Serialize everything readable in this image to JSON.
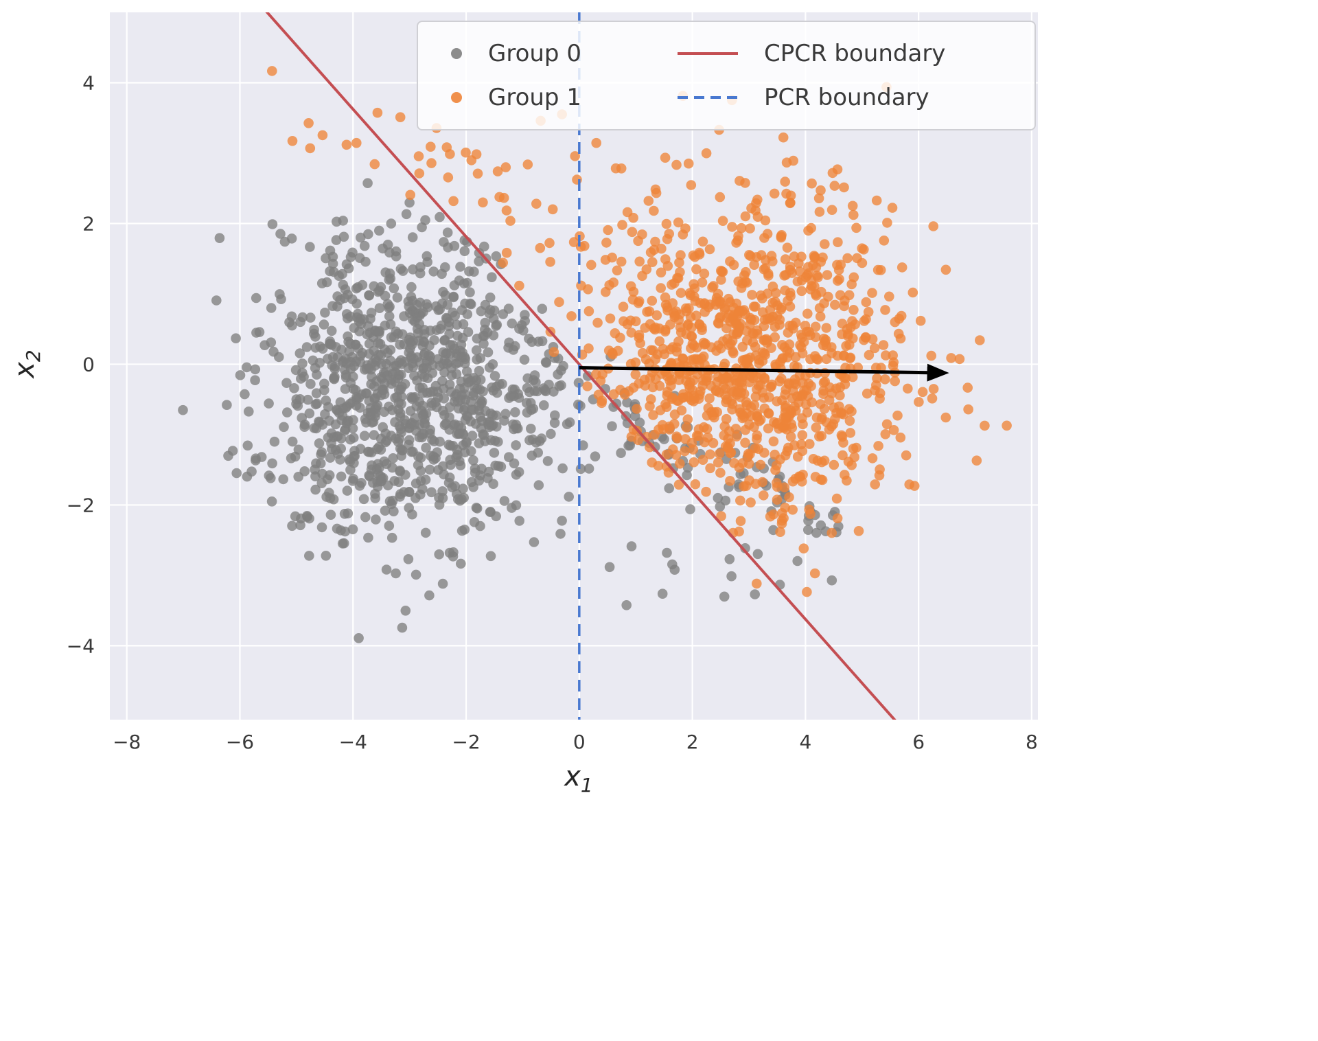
{
  "chart_data": {
    "type": "scatter",
    "xlabel_base": "x",
    "xlabel_sub": "1",
    "ylabel_base": "x",
    "ylabel_sub": "2",
    "xlim": [
      -8.3,
      8.11
    ],
    "ylim": [
      -5.05,
      5.0
    ],
    "xticks": [
      -8,
      -6,
      -4,
      -2,
      0,
      2,
      4,
      6,
      8
    ],
    "yticks": [
      -4,
      -2,
      0,
      2,
      4
    ],
    "background": "#eaeaf2",
    "grid": true,
    "point_radius_px": 7.3,
    "series": [
      {
        "name": "Group 0",
        "color": "#7f7f7f",
        "components": [
          {
            "kind": "gaussian",
            "n": 1000,
            "center": [
              -3.0,
              -0.35
            ],
            "std": [
              1.35,
              1.08
            ],
            "seed": 42,
            "clip": "below_line",
            "margin": 0.35
          },
          {
            "kind": "band",
            "n": 85,
            "x_range": [
              0.35,
              4.6
            ],
            "slope": -0.43,
            "intercept": -0.5,
            "noise": 0.33,
            "seed": 13
          },
          {
            "kind": "uniform",
            "n": 13,
            "x_range": [
              0.6,
              4.3
            ],
            "y_range": [
              -3.5,
              -2.3
            ],
            "seed": 17
          }
        ]
      },
      {
        "name": "Group 1",
        "color": "#ee8438",
        "components": [
          {
            "kind": "gaussian",
            "n": 1000,
            "center": [
              3.0,
              0.15
            ],
            "std": [
              1.35,
              1.12
            ],
            "seed": 7,
            "clip": "above_line",
            "margin": 0.35
          },
          {
            "kind": "band",
            "n": 42,
            "x_range": [
              -5.6,
              1.0
            ],
            "slope": -0.3,
            "intercept": 2.02,
            "noise": 0.42,
            "seed": 11
          },
          {
            "kind": "uniform",
            "n": 7,
            "x_range": [
              -2.9,
              2.0
            ],
            "y_range": [
              2.4,
              3.8
            ],
            "seed": 19
          }
        ]
      }
    ],
    "lines": [
      {
        "name": "CPCR boundary",
        "color": "#c44e52",
        "style": "solid",
        "slope": -0.906,
        "intercept": 0.0,
        "width": 4
      },
      {
        "name": "PCR boundary",
        "color": "#4878d0",
        "style": "dashed",
        "x": 0.0,
        "width": 3.5
      }
    ],
    "arrow": {
      "from": [
        0.0,
        -0.05
      ],
      "to": [
        6.2,
        -0.12
      ],
      "color": "#000000",
      "width": 5
    },
    "legend": {
      "entries": [
        {
          "label": "Group 0",
          "type": "marker",
          "color": "#7f7f7f"
        },
        {
          "label": "Group 1",
          "type": "marker",
          "color": "#ee8438"
        },
        {
          "label": "CPCR boundary",
          "type": "line",
          "style": "solid",
          "color": "#c44e52"
        },
        {
          "label": "PCR boundary",
          "type": "line",
          "style": "dashed",
          "color": "#4878d0"
        }
      ]
    }
  }
}
